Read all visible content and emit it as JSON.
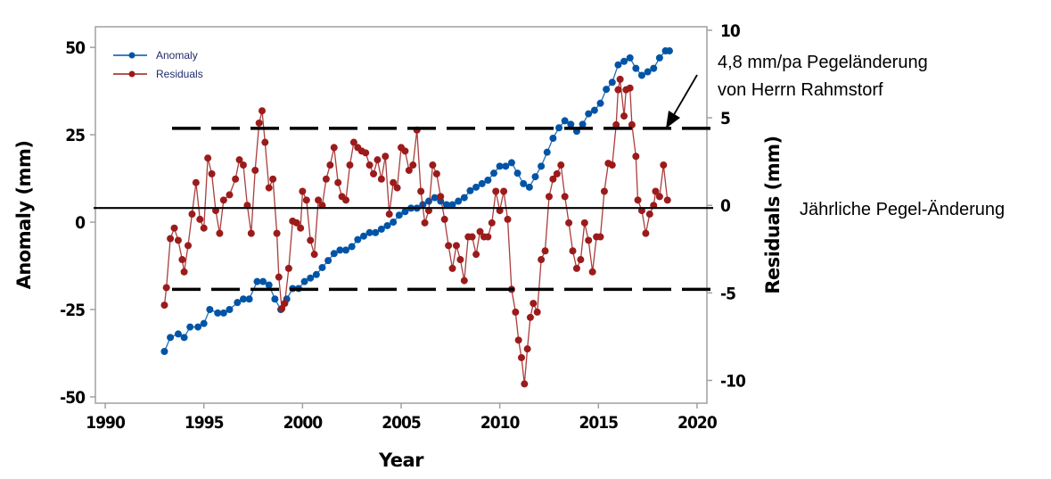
{
  "chart_data": {
    "type": "line",
    "xlabel": "Year",
    "ylabel": "Anomaly (mm)",
    "y2label": "Residuals (mm)",
    "xlim": [
      1989.5,
      2020.5
    ],
    "ylim": [
      -51.8,
      55.9
    ],
    "y2lim": [
      -11.3,
      10.2
    ],
    "xticks": [
      1990,
      1995,
      2000,
      2005,
      2010,
      2015,
      2020
    ],
    "yticks": [
      50,
      25,
      0,
      -25,
      -50
    ],
    "y2ticks": [
      10,
      5,
      0,
      -5,
      -10
    ],
    "grid": false,
    "legend_position": "top-left",
    "series": [
      {
        "name": "Anomaly",
        "axis": "left",
        "color": "#0054a6",
        "x": [
          1993.0,
          1993.3,
          1993.7,
          1994.0,
          1994.3,
          1994.7,
          1995.0,
          1995.3,
          1995.7,
          1996.0,
          1996.3,
          1996.7,
          1997.0,
          1997.3,
          1997.7,
          1998.0,
          1998.3,
          1998.6,
          1998.9,
          1999.2,
          1999.5,
          1999.8,
          2000.1,
          2000.4,
          2000.7,
          2001.0,
          2001.3,
          2001.6,
          2001.9,
          2002.2,
          2002.5,
          2002.8,
          2003.1,
          2003.4,
          2003.7,
          2004.0,
          2004.3,
          2004.6,
          2004.9,
          2005.2,
          2005.5,
          2005.8,
          2006.1,
          2006.4,
          2006.7,
          2007.0,
          2007.3,
          2007.6,
          2007.9,
          2008.2,
          2008.5,
          2008.8,
          2009.1,
          2009.4,
          2009.7,
          2010.0,
          2010.3,
          2010.6,
          2010.9,
          2011.2,
          2011.5,
          2011.8,
          2012.1,
          2012.4,
          2012.7,
          2013.0,
          2013.3,
          2013.6,
          2013.9,
          2014.2,
          2014.5,
          2014.8,
          2015.1,
          2015.4,
          2015.7,
          2016.0,
          2016.3,
          2016.6,
          2016.9,
          2017.2,
          2017.5,
          2017.8,
          2018.1,
          2018.4,
          2018.6
        ],
        "y": [
          -37,
          -33,
          -32,
          -33,
          -30,
          -30,
          -29,
          -25,
          -26,
          -26,
          -25,
          -23,
          -22,
          -22,
          -17,
          -17,
          -18,
          -22,
          -25,
          -22,
          -19,
          -19,
          -17,
          -16,
          -15,
          -13,
          -11,
          -9,
          -8,
          -8,
          -7,
          -5,
          -4,
          -3,
          -3,
          -2,
          -1,
          0,
          2,
          3,
          4,
          4,
          5,
          6,
          7,
          6,
          5,
          5,
          6,
          7,
          9,
          10,
          11,
          12,
          14,
          16,
          16,
          17,
          14,
          11,
          10,
          13,
          16,
          20,
          24,
          27,
          29,
          28,
          26,
          28,
          31,
          32,
          34,
          38,
          40,
          45,
          46,
          47,
          44,
          42,
          43,
          44,
          47,
          49,
          49
        ]
      },
      {
        "name": "Residuals",
        "axis": "right",
        "color": "#9b1b1b",
        "x": [
          1993.0,
          1993.1,
          1993.3,
          1993.5,
          1993.7,
          1993.9,
          1994.0,
          1994.2,
          1994.4,
          1994.6,
          1994.8,
          1995.0,
          1995.2,
          1995.4,
          1995.6,
          1995.8,
          1996.0,
          1996.3,
          1996.6,
          1996.8,
          1997.0,
          1997.2,
          1997.4,
          1997.6,
          1997.8,
          1997.95,
          1998.1,
          1998.3,
          1998.5,
          1998.7,
          1998.8,
          1998.95,
          1999.1,
          1999.3,
          1999.5,
          1999.7,
          1999.9,
          2000.0,
          2000.2,
          2000.4,
          2000.6,
          2000.8,
          2001.0,
          2001.2,
          2001.4,
          2001.6,
          2001.8,
          2002.0,
          2002.2,
          2002.4,
          2002.6,
          2002.8,
          2003.0,
          2003.2,
          2003.4,
          2003.6,
          2003.8,
          2004.0,
          2004.2,
          2004.4,
          2004.6,
          2004.8,
          2005.0,
          2005.2,
          2005.4,
          2005.6,
          2005.8,
          2006.0,
          2006.2,
          2006.4,
          2006.6,
          2006.8,
          2007.0,
          2007.2,
          2007.4,
          2007.6,
          2007.8,
          2008.0,
          2008.2,
          2008.4,
          2008.6,
          2008.8,
          2009.0,
          2009.2,
          2009.4,
          2009.6,
          2009.8,
          2010.0,
          2010.2,
          2010.4,
          2010.6,
          2010.8,
          2010.95,
          2011.1,
          2011.25,
          2011.4,
          2011.55,
          2011.7,
          2011.9,
          2012.1,
          2012.3,
          2012.5,
          2012.7,
          2012.9,
          2013.1,
          2013.3,
          2013.5,
          2013.7,
          2013.9,
          2014.1,
          2014.3,
          2014.5,
          2014.7,
          2014.9,
          2015.1,
          2015.3,
          2015.5,
          2015.7,
          2015.9,
          2016.0,
          2016.1,
          2016.3,
          2016.4,
          2016.6,
          2016.7,
          2016.9,
          2017.0,
          2017.2,
          2017.4,
          2017.6,
          2017.8,
          2017.9,
          2018.1,
          2018.3,
          2018.5
        ],
        "y": [
          -5.7,
          -4.7,
          -1.9,
          -1.3,
          -2.0,
          -3.1,
          -3.8,
          -2.3,
          -0.5,
          1.3,
          -0.8,
          -1.3,
          2.7,
          1.8,
          -0.3,
          -1.6,
          0.3,
          0.6,
          1.5,
          2.6,
          2.3,
          0.0,
          -1.6,
          2.0,
          4.7,
          5.4,
          3.6,
          1.0,
          1.5,
          -1.6,
          -4.1,
          -5.9,
          -5.6,
          -3.6,
          -0.9,
          -1.0,
          -1.3,
          0.8,
          0.3,
          -2.0,
          -2.8,
          0.3,
          0.0,
          1.5,
          2.3,
          3.3,
          1.3,
          0.5,
          0.3,
          2.3,
          3.6,
          3.3,
          3.1,
          3.0,
          2.3,
          1.8,
          2.6,
          1.5,
          2.8,
          -0.5,
          1.3,
          1.0,
          3.3,
          3.1,
          2.0,
          2.3,
          4.3,
          0.8,
          -1.0,
          -0.3,
          2.3,
          1.8,
          0.5,
          -0.8,
          -2.3,
          -3.6,
          -2.3,
          -3.1,
          -4.3,
          -1.8,
          -1.8,
          -2.8,
          -1.5,
          -1.8,
          -1.8,
          -1.0,
          0.8,
          -0.3,
          0.8,
          -0.8,
          -4.8,
          -6.1,
          -7.7,
          -8.7,
          -10.2,
          -8.2,
          -6.4,
          -5.6,
          -6.1,
          -3.1,
          -2.6,
          0.5,
          1.5,
          1.8,
          2.3,
          0.5,
          -1.0,
          -2.6,
          -3.6,
          -3.1,
          -1.0,
          -2.0,
          -3.8,
          -1.8,
          -1.8,
          0.8,
          2.4,
          2.3,
          4.6,
          6.6,
          7.2,
          5.1,
          6.6,
          6.7,
          4.6,
          2.8,
          0.3,
          -0.3,
          -1.6,
          -0.5,
          0.0,
          0.8,
          0.5,
          2.3,
          0.3
        ]
      }
    ],
    "reference_lines": [
      {
        "axis": "right",
        "value": 4.4,
        "style": "dashed"
      },
      {
        "axis": "right",
        "value": 0,
        "style": "solid"
      },
      {
        "axis": "right",
        "value": -4.8,
        "style": "dashed"
      }
    ],
    "annotations": {
      "upper_line_1": "4,8 mm/pa Pegeländerung",
      "upper_line_2": "von Herrn Rahmstorf",
      "zero_line": "Jährliche Pegel-Änderung"
    }
  }
}
